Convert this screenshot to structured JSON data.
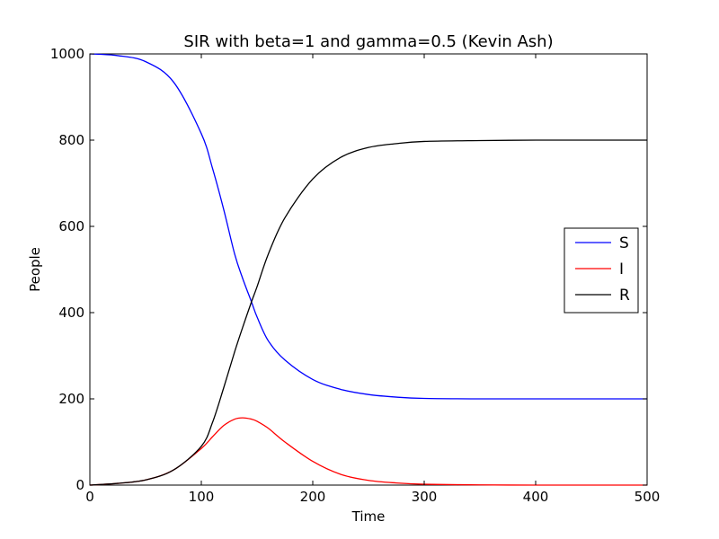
{
  "chart_data": {
    "type": "line",
    "title": "SIR with beta=1 and gamma=0.5 (Kevin Ash)",
    "xlabel": "Time",
    "ylabel": "People",
    "xlim": [
      0,
      500
    ],
    "ylim": [
      0,
      1000
    ],
    "xticks": [
      "0",
      "100",
      "200",
      "300",
      "400",
      "500"
    ],
    "yticks": [
      "0",
      "200",
      "400",
      "600",
      "800",
      "1000"
    ],
    "grid": false,
    "legend_position": "center-right",
    "x": [
      0,
      25,
      50,
      75,
      100,
      110,
      120,
      130,
      137,
      145,
      150,
      160,
      175,
      200,
      225,
      250,
      275,
      300,
      350,
      400,
      450,
      500
    ],
    "series": [
      {
        "name": "S",
        "color": "#0000ff",
        "values": [
          1000,
          996,
          982,
          935,
          815,
          735,
          640,
          535,
          480,
          425,
          390,
          335,
          290,
          245,
          222,
          210,
          204,
          201,
          200,
          200,
          200,
          200
        ]
      },
      {
        "name": "I",
        "color": "#ff0000",
        "values": [
          0,
          4,
          12,
          35,
          85,
          112,
          138,
          153,
          156,
          153,
          148,
          132,
          100,
          55,
          25,
          11,
          5,
          2,
          0.5,
          0,
          0,
          0
        ]
      },
      {
        "name": "R",
        "color": "#000000",
        "values": [
          0,
          4,
          12,
          35,
          90,
          145,
          225,
          310,
          365,
          425,
          460,
          535,
          620,
          710,
          760,
          783,
          792,
          797,
          799,
          800,
          800,
          800
        ]
      }
    ]
  }
}
